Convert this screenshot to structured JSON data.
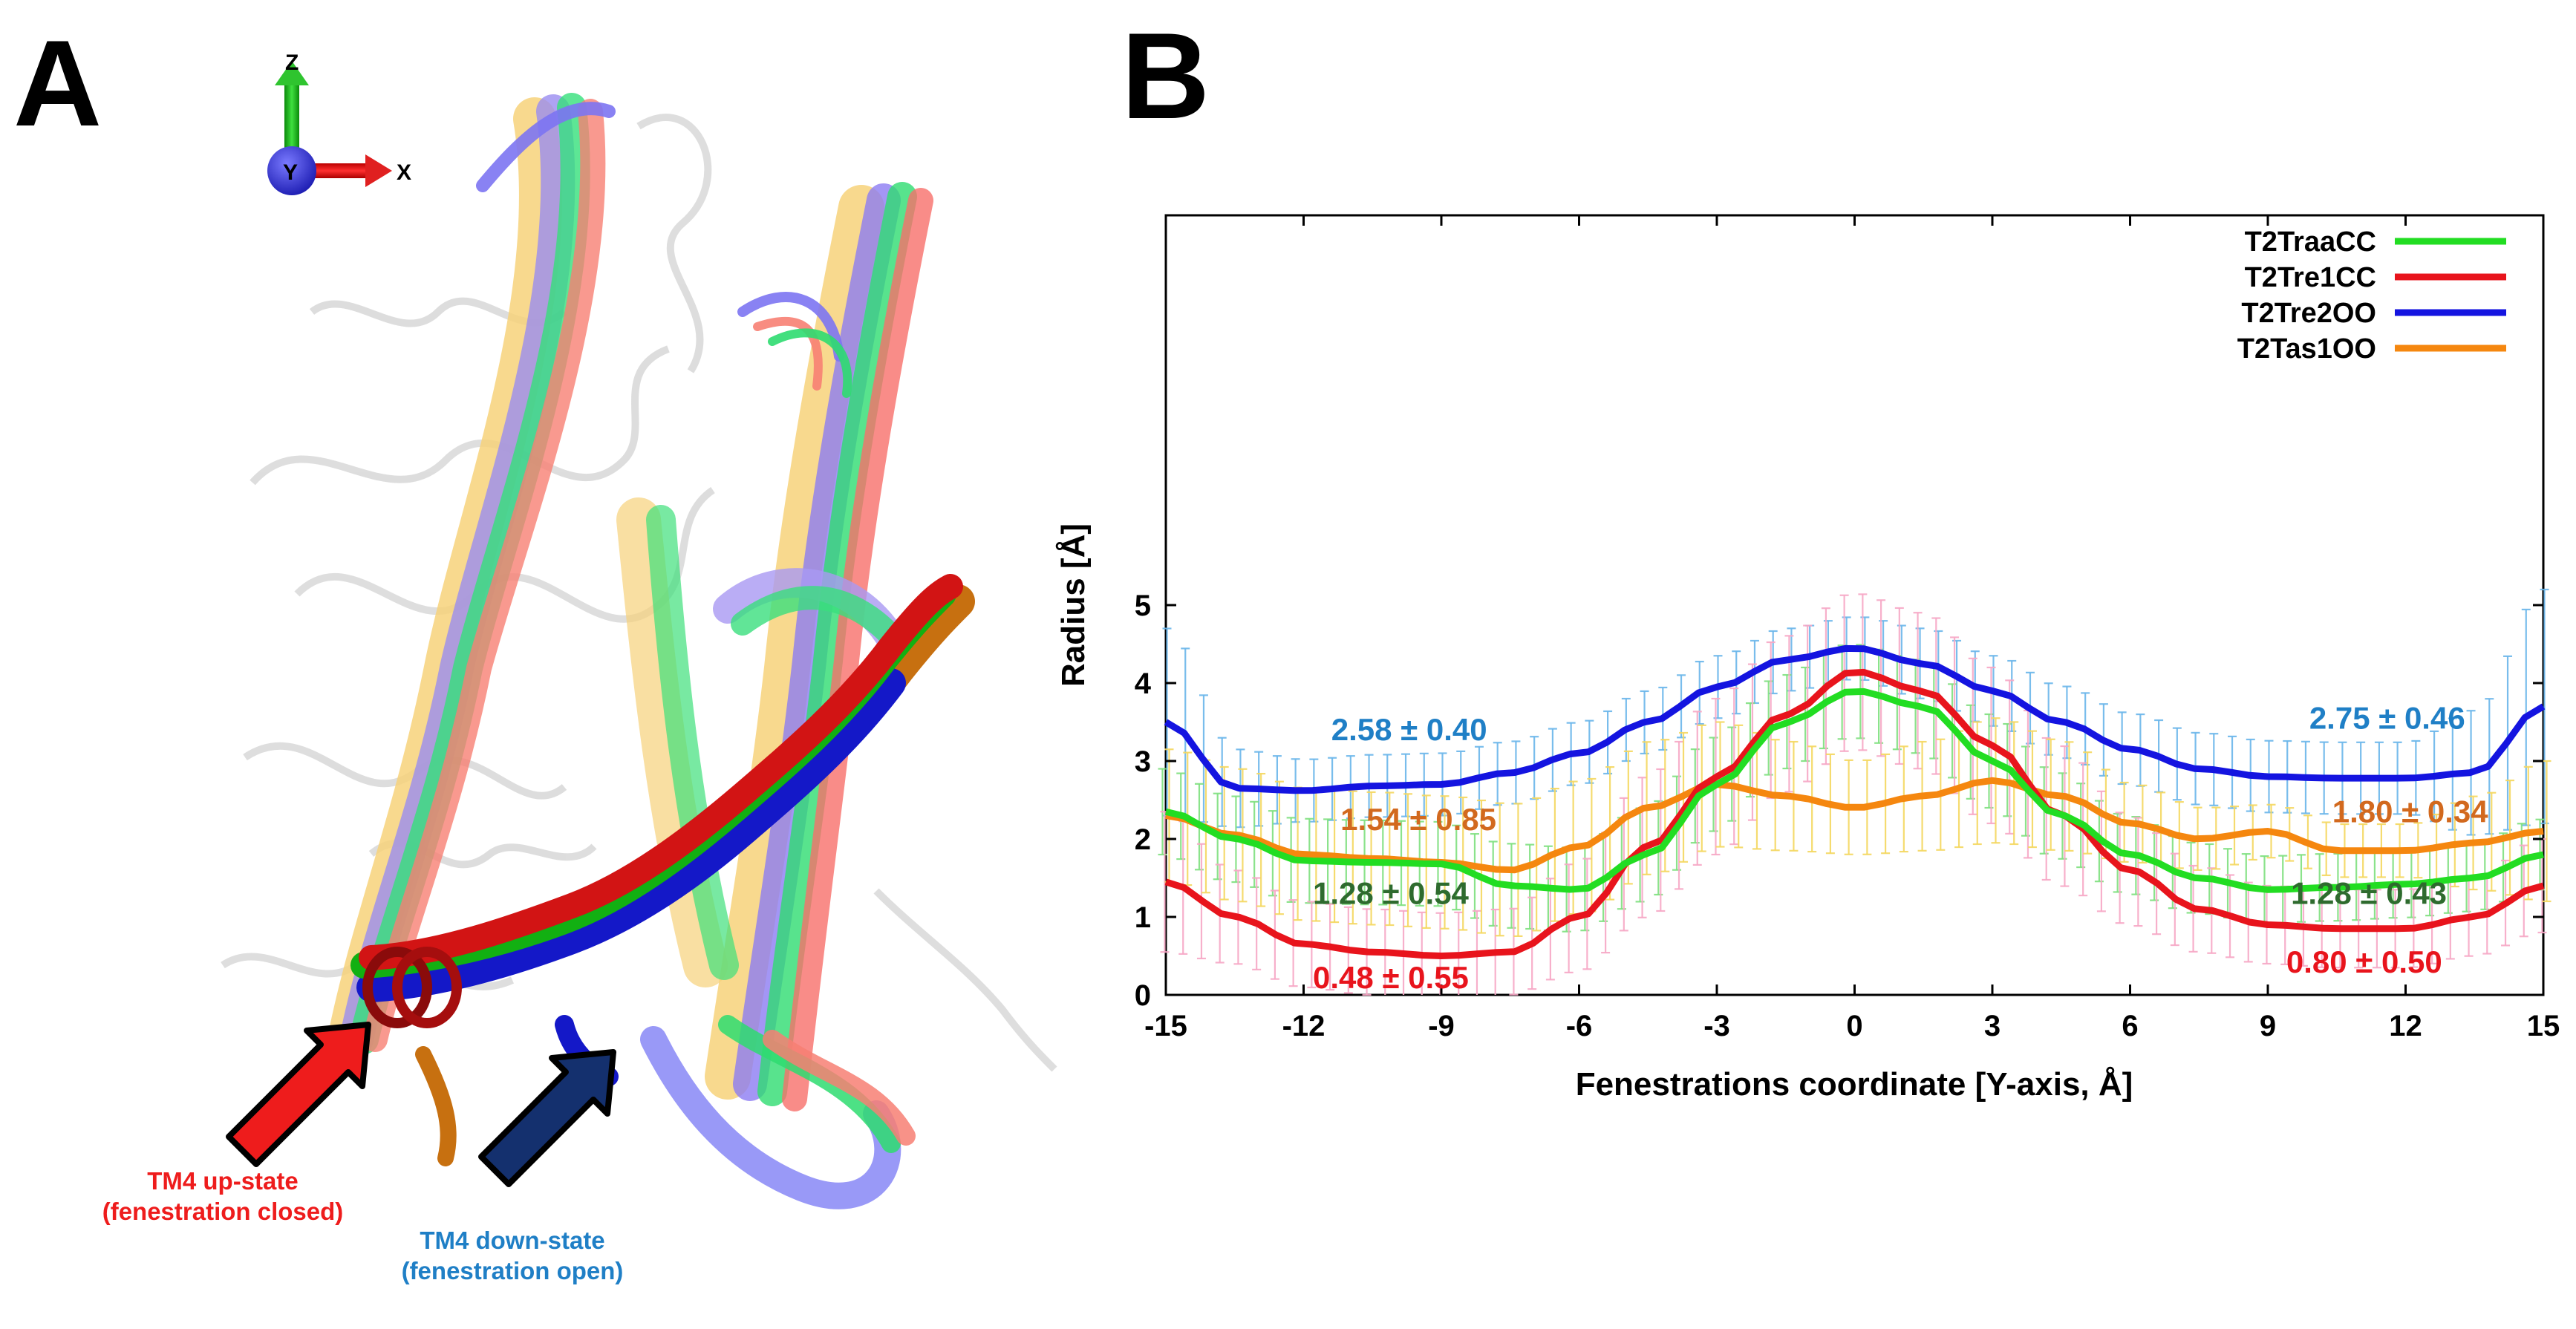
{
  "panelA": {
    "letter": "A",
    "axes_labels": {
      "z": "Z",
      "y": "Y",
      "x": "X"
    },
    "caption_up": {
      "line1": "TM4 up-state",
      "line2": "(fenestration closed)",
      "color": "#ee1c1c"
    },
    "caption_down": {
      "line1": "TM4 down-state",
      "line2": "(fenestration open)",
      "color": "#1f7fc6"
    }
  },
  "panelB": {
    "letter": "B"
  },
  "chart_data": {
    "type": "line",
    "title": "",
    "xlabel": "Fenestrations coordinate [Y-axis, Å]",
    "ylabel": "Radius [Å]",
    "xlim": [
      -15,
      15
    ],
    "ylim": [
      0,
      10
    ],
    "xticks": [
      "-15",
      "-12",
      "-9",
      "-6",
      "-3",
      "0",
      "3",
      "6",
      "9",
      "12",
      "15"
    ],
    "yticks": [
      "0",
      "1",
      "2",
      "3",
      "4",
      "5"
    ],
    "legend_position": "top-right",
    "x": [
      -15,
      -13.5,
      -12,
      -10.5,
      -9,
      -7.5,
      -6,
      -4.5,
      -3,
      -1.5,
      0,
      1.5,
      3,
      4.5,
      6,
      7.5,
      9,
      10.5,
      12,
      13.5,
      15
    ],
    "series": [
      {
        "name": "T2TraaCC",
        "color": "#22dd22",
        "errcolor": "#7fe07f",
        "values": [
          2.35,
          2.0,
          1.72,
          1.7,
          1.68,
          1.4,
          1.35,
          1.8,
          2.7,
          3.5,
          3.9,
          3.7,
          3.0,
          2.3,
          1.8,
          1.5,
          1.35,
          1.38,
          1.42,
          1.5,
          1.8
        ],
        "errors": [
          0.55,
          0.55,
          0.54,
          0.54,
          0.54,
          0.54,
          0.54,
          0.6,
          0.6,
          0.6,
          0.6,
          0.6,
          0.6,
          0.55,
          0.5,
          0.45,
          0.43,
          0.43,
          0.43,
          0.43,
          0.45
        ]
      },
      {
        "name": "T2Tre1CC",
        "color": "#e8141c",
        "errcolor": "#f7a8c6",
        "values": [
          1.45,
          1.0,
          0.65,
          0.55,
          0.5,
          0.55,
          1.0,
          1.9,
          2.8,
          3.6,
          4.15,
          3.9,
          3.2,
          2.3,
          1.6,
          1.1,
          0.9,
          0.85,
          0.85,
          1.0,
          1.4
        ],
        "errors": [
          0.9,
          0.6,
          0.55,
          0.55,
          0.55,
          0.55,
          0.7,
          0.9,
          1.0,
          1.0,
          1.0,
          1.0,
          1.0,
          0.9,
          0.7,
          0.55,
          0.5,
          0.5,
          0.5,
          0.5,
          0.6
        ]
      },
      {
        "name": "T2Tre2OO",
        "color": "#1414e0",
        "errcolor": "#6bb6ea",
        "values": [
          3.5,
          2.65,
          2.62,
          2.68,
          2.7,
          2.85,
          3.1,
          3.5,
          3.95,
          4.3,
          4.45,
          4.25,
          3.9,
          3.5,
          3.15,
          2.9,
          2.8,
          2.78,
          2.78,
          2.85,
          3.7
        ],
        "errors": [
          1.2,
          0.5,
          0.4,
          0.4,
          0.4,
          0.4,
          0.4,
          0.4,
          0.4,
          0.4,
          0.4,
          0.45,
          0.45,
          0.46,
          0.46,
          0.46,
          0.46,
          0.46,
          0.46,
          0.8,
          1.5
        ]
      },
      {
        "name": "T2Tas1OO",
        "color": "#f5870f",
        "errcolor": "#f5d860",
        "values": [
          2.3,
          2.05,
          1.8,
          1.75,
          1.7,
          1.6,
          1.9,
          2.4,
          2.7,
          2.55,
          2.4,
          2.55,
          2.75,
          2.55,
          2.2,
          2.0,
          2.1,
          1.85,
          1.85,
          1.95,
          2.1
        ],
        "errors": [
          0.85,
          0.85,
          0.85,
          0.85,
          0.85,
          0.85,
          0.85,
          0.85,
          0.8,
          0.7,
          0.6,
          0.7,
          0.8,
          0.7,
          0.5,
          0.4,
          0.34,
          0.34,
          0.34,
          0.6,
          0.9
        ]
      }
    ],
    "annotations": [
      {
        "text": "2.58 ± 0.40",
        "x": -9.7,
        "y": 3.4,
        "color": "#1f7fc6"
      },
      {
        "text": "2.75 ± 0.46",
        "x": 11.6,
        "y": 3.55,
        "color": "#1f7fc6"
      },
      {
        "text": "1.54 ± 0.85",
        "x": -9.5,
        "y": 2.25,
        "color": "#d2691e"
      },
      {
        "text": "1.80 ± 0.34",
        "x": 12.1,
        "y": 2.35,
        "color": "#d2691e"
      },
      {
        "text": "1.28 ± 0.54",
        "x": -10.1,
        "y": 1.3,
        "color": "#2e6b2e"
      },
      {
        "text": "1.28 ± 0.43",
        "x": 11.2,
        "y": 1.3,
        "color": "#2e6b2e"
      },
      {
        "text": "0.48 ± 0.55",
        "x": -10.1,
        "y": 0.22,
        "color": "#e8141c"
      },
      {
        "text": "0.80 ± 0.50",
        "x": 11.1,
        "y": 0.42,
        "color": "#e8141c"
      }
    ]
  }
}
